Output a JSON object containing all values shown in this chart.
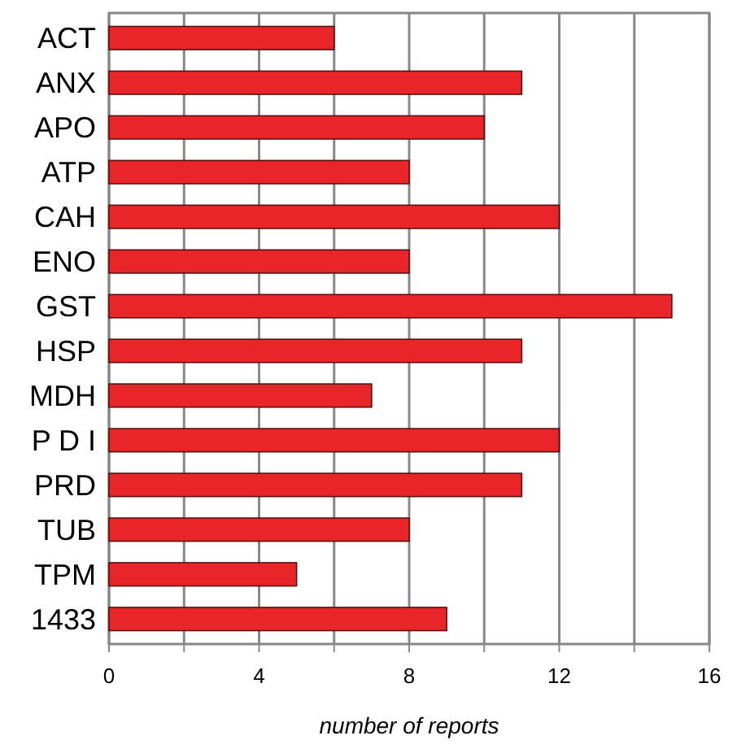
{
  "chart_data": {
    "type": "bar",
    "orientation": "horizontal",
    "xlabel": "number of reports",
    "categories": [
      "ACT",
      "ANX",
      "APO",
      "ATP",
      "CAH",
      "ENO",
      "GST",
      "HSP",
      "MDH",
      "P D I",
      "PRD",
      "TUB",
      "TPM",
      "1433"
    ],
    "values": [
      6,
      11,
      10,
      8,
      12,
      8,
      15,
      11,
      7,
      12,
      11,
      8,
      5,
      9
    ],
    "color": "#e8262a",
    "xlim": [
      0,
      16
    ],
    "xticks": [
      0,
      {
        "value": 2,
        "label": null
      },
      4,
      {
        "value": 6,
        "label": null
      },
      8,
      {
        "value": 10,
        "label": null
      },
      12,
      {
        "value": 14,
        "label": null
      },
      16
    ],
    "grid": "x"
  }
}
